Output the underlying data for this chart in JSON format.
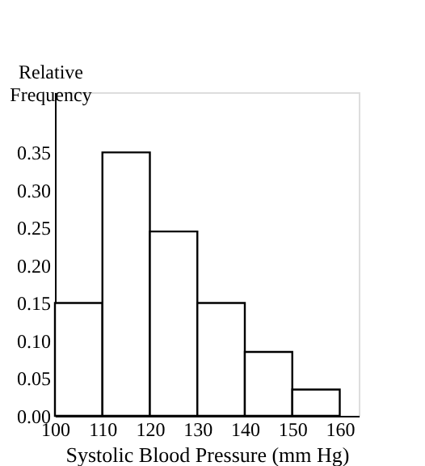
{
  "chart_data": {
    "type": "histogram",
    "xlabel": "Systolic Blood Pressure (mm Hg)",
    "ylabel": "Relative Frequency",
    "bins": [
      100,
      110,
      120,
      130,
      140,
      150,
      160
    ],
    "values": [
      0.15,
      0.35,
      0.245,
      0.15,
      0.085,
      0.035
    ],
    "color": "#ffffff",
    "xlim": [
      100,
      164
    ],
    "xticks": [
      100,
      110,
      120,
      130,
      140,
      150,
      160
    ],
    "ylim": [
      0,
      0.43
    ],
    "yticks": [
      {
        "value": 0,
        "label": "0.00"
      },
      {
        "value": 0.05,
        "label": "0.05"
      },
      {
        "value": 0.1,
        "label": "0.10"
      },
      {
        "value": 0.15,
        "label": "0.15"
      },
      {
        "value": 0.2,
        "label": "0.20"
      },
      {
        "value": 0.25,
        "label": "0.25"
      },
      {
        "value": 0.3,
        "label": "0.30"
      },
      {
        "value": 0.35,
        "label": "0.35"
      }
    ],
    "grid": false
  }
}
